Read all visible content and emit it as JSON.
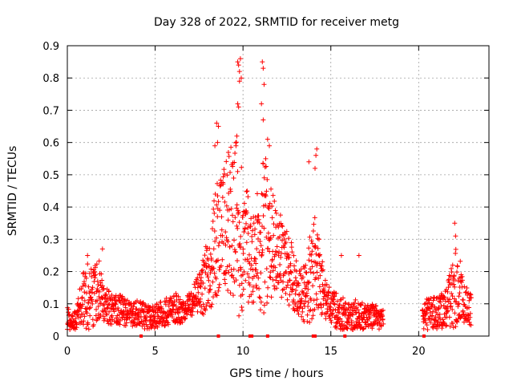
{
  "chart_data": {
    "type": "scatter",
    "title": "Day 328 of 2022, SRMTID for receiver metg",
    "xlabel": "GPS time / hours",
    "ylabel": "SRMTID / TECUs",
    "xlim": [
      0,
      24
    ],
    "ylim": [
      0,
      0.9
    ],
    "x_ticks": [
      0,
      5,
      10,
      15,
      20
    ],
    "x_tick_labels": [
      "0",
      "5",
      "10",
      "15",
      "20"
    ],
    "y_ticks": [
      0,
      0.1,
      0.2,
      0.3,
      0.4,
      0.5,
      0.6,
      0.7,
      0.8,
      0.9
    ],
    "y_tick_labels": [
      "0",
      "0.1",
      "0.2",
      "0.3",
      "0.4",
      "0.5",
      "0.6",
      "0.7",
      "0.8",
      "0.9"
    ],
    "grid": true,
    "marker": "+",
    "color": "#ff0000",
    "gap_hours": [
      18.0,
      20.2
    ],
    "series": [
      {
        "name": "SRMTID",
        "envelope": {
          "x": [
            0,
            0.3,
            0.6,
            0.9,
            1.2,
            1.5,
            1.8,
            2.0,
            2.5,
            3.0,
            3.5,
            4.0,
            4.5,
            5.0,
            5.5,
            6.0,
            6.5,
            7.0,
            7.5,
            7.8,
            8.2,
            8.6,
            9.0,
            9.4,
            9.7,
            10.0,
            10.3,
            10.6,
            11.0,
            11.2,
            11.5,
            12.0,
            12.5,
            13.0,
            13.3,
            13.6,
            13.8,
            14.1,
            14.4,
            14.7,
            15.0,
            15.5,
            16.0,
            16.5,
            17.0,
            17.5,
            18.0,
            20.2,
            20.5,
            21.0,
            21.5,
            21.8,
            22.0,
            22.2,
            22.5,
            23.0
          ],
          "median": [
            0.06,
            0.04,
            0.07,
            0.11,
            0.13,
            0.12,
            0.14,
            0.11,
            0.08,
            0.08,
            0.07,
            0.07,
            0.06,
            0.06,
            0.07,
            0.09,
            0.08,
            0.1,
            0.13,
            0.16,
            0.24,
            0.31,
            0.35,
            0.35,
            0.33,
            0.3,
            0.27,
            0.24,
            0.28,
            0.33,
            0.3,
            0.25,
            0.22,
            0.16,
            0.13,
            0.14,
            0.17,
            0.24,
            0.17,
            0.12,
            0.09,
            0.07,
            0.06,
            0.07,
            0.06,
            0.06,
            0.05,
            0.06,
            0.07,
            0.07,
            0.08,
            0.11,
            0.14,
            0.16,
            0.11,
            0.08
          ],
          "spread": [
            0.04,
            0.02,
            0.05,
            0.09,
            0.11,
            0.09,
            0.1,
            0.06,
            0.05,
            0.05,
            0.04,
            0.04,
            0.04,
            0.04,
            0.04,
            0.05,
            0.04,
            0.04,
            0.06,
            0.1,
            0.15,
            0.18,
            0.22,
            0.25,
            0.28,
            0.24,
            0.18,
            0.15,
            0.23,
            0.26,
            0.18,
            0.14,
            0.12,
            0.09,
            0.08,
            0.1,
            0.14,
            0.18,
            0.1,
            0.07,
            0.05,
            0.06,
            0.04,
            0.05,
            0.04,
            0.04,
            0.03,
            0.04,
            0.05,
            0.05,
            0.06,
            0.09,
            0.13,
            0.14,
            0.07,
            0.05
          ]
        },
        "peaks": [
          {
            "x": 9.7,
            "y": 0.85
          },
          {
            "x": 9.75,
            "y": 0.84
          },
          {
            "x": 9.85,
            "y": 0.86
          },
          {
            "x": 9.8,
            "y": 0.82
          },
          {
            "x": 9.9,
            "y": 0.8
          },
          {
            "x": 9.8,
            "y": 0.79
          },
          {
            "x": 9.75,
            "y": 0.71
          },
          {
            "x": 9.7,
            "y": 0.72
          },
          {
            "x": 11.1,
            "y": 0.85
          },
          {
            "x": 11.15,
            "y": 0.83
          },
          {
            "x": 11.2,
            "y": 0.78
          },
          {
            "x": 11.05,
            "y": 0.72
          },
          {
            "x": 11.15,
            "y": 0.67
          },
          {
            "x": 8.5,
            "y": 0.66
          },
          {
            "x": 8.6,
            "y": 0.65
          },
          {
            "x": 8.55,
            "y": 0.6
          },
          {
            "x": 8.4,
            "y": 0.59
          },
          {
            "x": 9.65,
            "y": 0.62
          },
          {
            "x": 11.4,
            "y": 0.61
          },
          {
            "x": 11.5,
            "y": 0.59
          },
          {
            "x": 14.2,
            "y": 0.58
          },
          {
            "x": 14.15,
            "y": 0.56
          },
          {
            "x": 13.75,
            "y": 0.54
          },
          {
            "x": 14.1,
            "y": 0.52
          },
          {
            "x": 22.05,
            "y": 0.35
          },
          {
            "x": 22.1,
            "y": 0.31
          },
          {
            "x": 2.0,
            "y": 0.27
          },
          {
            "x": 1.15,
            "y": 0.25
          },
          {
            "x": 16.6,
            "y": 0.25
          },
          {
            "x": 15.6,
            "y": 0.25
          }
        ]
      }
    ],
    "baseline_marks_x": [
      4.2,
      8.6,
      10.4,
      10.5,
      11.4,
      14.0,
      14.1,
      15.8,
      20.3
    ]
  }
}
